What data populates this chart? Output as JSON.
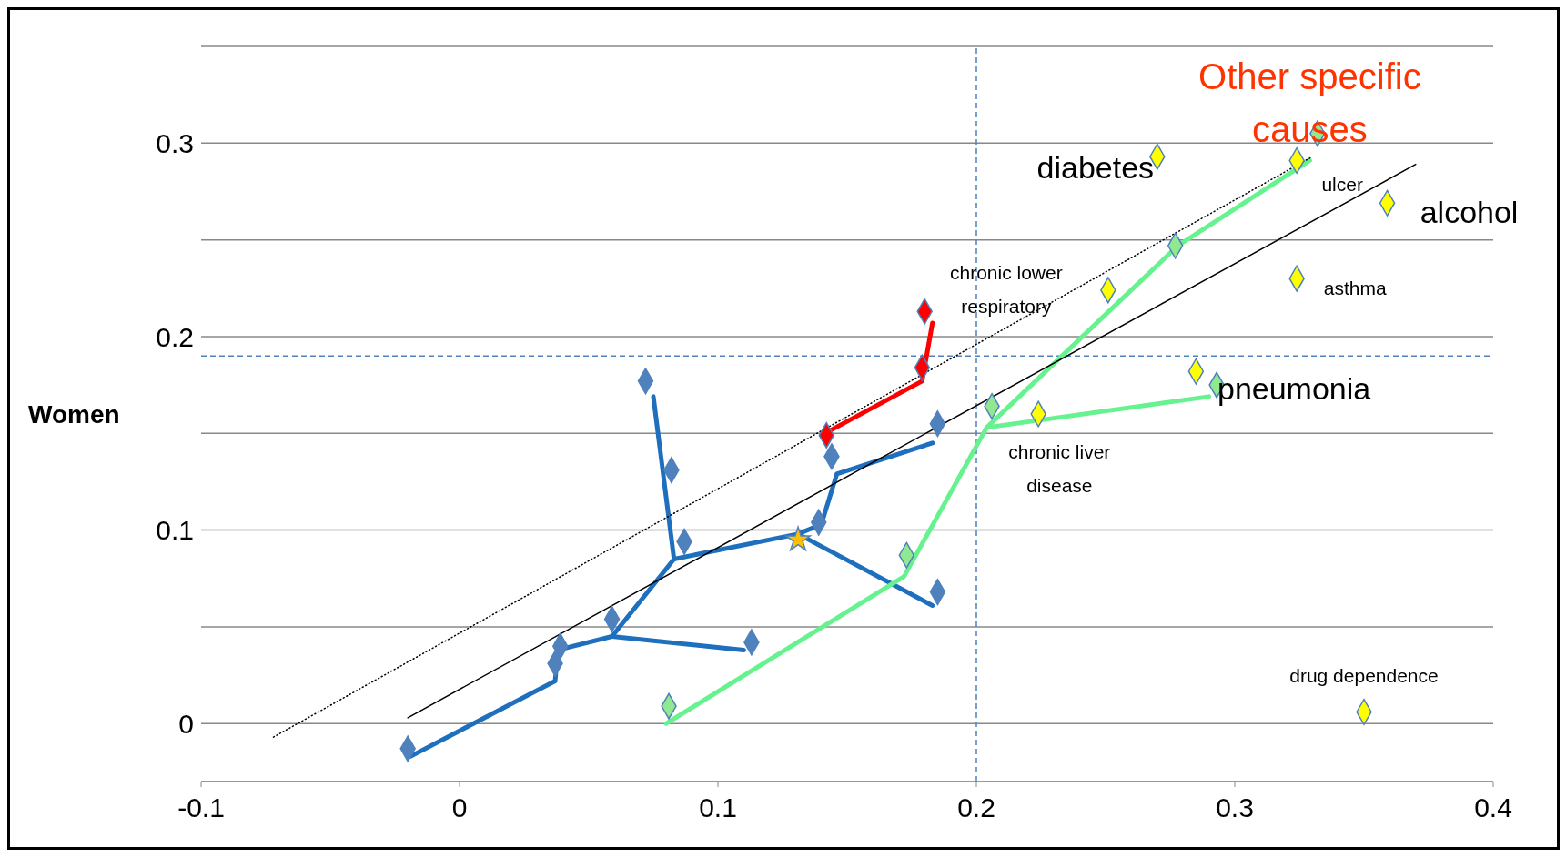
{
  "chart_data": {
    "type": "scatter",
    "ylabel": "Women",
    "xlim": [
      -0.1,
      0.4
    ],
    "xticks": [
      -0.1,
      0,
      0.1,
      0.2,
      0.3,
      0.4
    ],
    "ylim": [
      -0.03,
      0.35
    ],
    "yticks": [
      0,
      {
        "value": 0.05,
        "label": null
      },
      0.1,
      {
        "value": 0.15,
        "label": null
      },
      0.2,
      {
        "value": 0.25,
        "label": null
      },
      0.3,
      {
        "value": 0.35,
        "label": null
      }
    ],
    "grid": "y",
    "series": [
      {
        "type": "line",
        "color": "#1f6fbf",
        "x": [
          -0.019,
          0.037,
          0.038,
          0.059,
          0.083,
          0.131,
          0.183
        ],
        "values": [
          -0.017,
          0.022,
          0.038,
          0.045,
          0.085,
          0.098,
          0.061
        ]
      },
      {
        "type": "line",
        "color": "#1f6fbf",
        "x": [
          0.059,
          0.11
        ],
        "values": [
          0.045,
          0.038
        ]
      },
      {
        "type": "line",
        "color": "#1f6fbf",
        "x": [
          0.083,
          0.075
        ],
        "values": [
          0.085,
          0.169
        ]
      },
      {
        "type": "line",
        "color": "#1f6fbf",
        "x": [
          0.131,
          0.14,
          0.146,
          0.183
        ],
        "values": [
          0.098,
          0.103,
          0.129,
          0.145
        ]
      },
      {
        "type": "line",
        "color": "#ff0000",
        "x": [
          0.14,
          0.179,
          0.181,
          0.183
        ],
        "values": [
          0.149,
          0.177,
          0.192,
          0.207
        ]
      },
      {
        "type": "line",
        "color": "#66f28f",
        "x": [
          0.08,
          0.172,
          0.204,
          0.29
        ],
        "values": [
          0,
          0.076,
          0.153,
          0.169
        ]
      },
      {
        "type": "line",
        "color": "#66f28f",
        "x": [
          0.204,
          0.278,
          0.329
        ],
        "values": [
          0.153,
          0.247,
          0.291
        ]
      },
      {
        "type": "line",
        "color": "#000000",
        "line_style": "solid",
        "x": [
          -0.02,
          0.37
        ],
        "values": [
          0.003,
          0.289
        ]
      },
      {
        "type": "line",
        "color": "#000000",
        "line_style": "dotted",
        "x": [
          -0.072,
          0.33
        ],
        "values": [
          -0.007,
          0.293
        ]
      },
      {
        "type": "scatter",
        "marker": "diamond",
        "color": "#4f81bd",
        "x": [
          -0.02,
          0.037,
          0.039,
          0.059,
          0.113,
          0.072,
          0.082,
          0.087,
          0.139,
          0.144,
          0.185,
          0.185
        ],
        "values": [
          -0.013,
          0.031,
          0.04,
          0.054,
          0.042,
          0.177,
          0.131,
          0.094,
          0.104,
          0.138,
          0.155,
          0.068
        ]
      },
      {
        "type": "scatter",
        "marker": "diamond",
        "color": "#ff0000",
        "x": [
          0.18,
          0.179,
          0.142
        ],
        "values": [
          0.213,
          0.184,
          0.149
        ]
      },
      {
        "type": "scatter",
        "marker": "diamond",
        "color": "#90e890",
        "x": [
          0.081,
          0.173,
          0.206,
          0.277,
          0.293,
          0.332
        ],
        "values": [
          0.009,
          0.087,
          0.164,
          0.247,
          0.175,
          0.305
        ]
      },
      {
        "type": "scatter",
        "marker": "diamond",
        "color": "#ffff00",
        "x": [
          0.27,
          0.251,
          0.224,
          0.324,
          0.359,
          0.324,
          0.285,
          0.35
        ],
        "values": [
          0.293,
          0.224,
          0.16,
          0.291,
          0.269,
          0.23,
          0.182,
          0.006
        ]
      },
      {
        "type": "scatter",
        "marker": "star",
        "color": "#ffc000",
        "x": [
          0.131
        ],
        "values": [
          0.095
        ]
      }
    ],
    "ref_lines": [
      {
        "axis": "x",
        "value": 0.2,
        "color": "#4f81bd",
        "line_style": "dashed"
      },
      {
        "axis": "y",
        "value": 0.19,
        "color": "#4f81bd",
        "line_style": "dashed"
      }
    ],
    "annotations": [
      {
        "text": "Other specific causes",
        "x": 0.329,
        "y": 0.291
      },
      {
        "text": "diabetes",
        "x": 0.27,
        "y": 0.293
      },
      {
        "text": "ulcer",
        "x": 0.324,
        "y": 0.291
      },
      {
        "text": "alcohol",
        "x": 0.359,
        "y": 0.269
      },
      {
        "text": "chronic lower respiratory",
        "x": 0.251,
        "y": 0.224
      },
      {
        "text": "asthma",
        "x": 0.324,
        "y": 0.23
      },
      {
        "text": "pneumonia",
        "x": 0.293,
        "y": 0.175
      },
      {
        "text": "chronic liver disease",
        "x": 0.204,
        "y": 0.153
      },
      {
        "text": "drug dependence",
        "x": 0.35,
        "y": 0.006
      }
    ]
  }
}
